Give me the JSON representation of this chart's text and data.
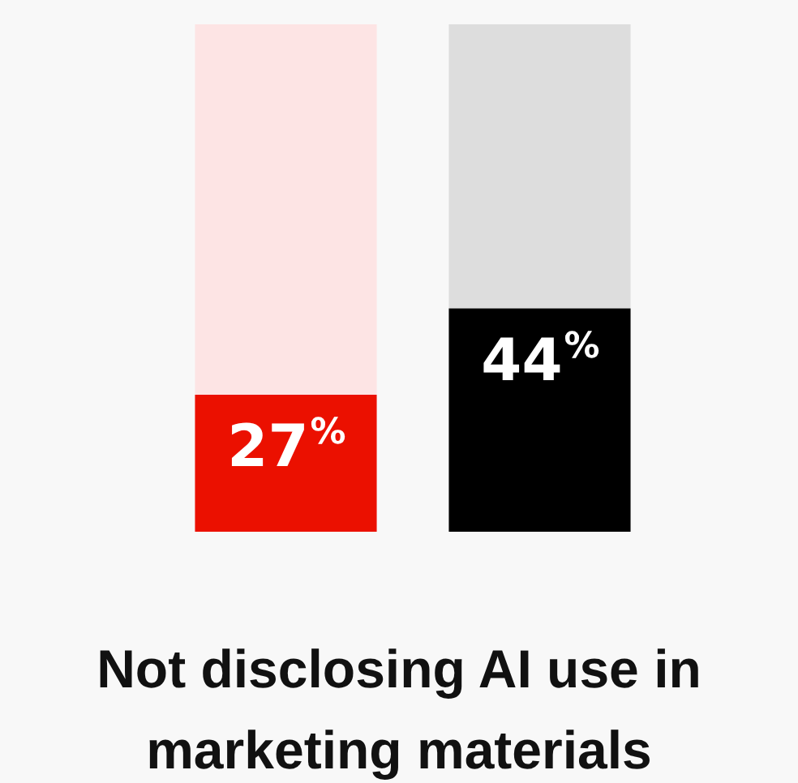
{
  "chart_data": {
    "type": "bar",
    "title": "Not disclosing AI use in marketing materials",
    "categories": [
      null,
      null
    ],
    "stacked": true,
    "ylim": [
      0,
      100
    ],
    "tick_labels": false,
    "grid": false,
    "legend": false,
    "series": [
      {
        "colors": [
          "#eb1000",
          "#000000"
        ],
        "values": [
          27,
          44
        ],
        "value_labels": [
          "27%",
          "44%"
        ]
      },
      {
        "colors": [
          "#fde4e4",
          "#dddddd"
        ],
        "values": [
          73,
          56
        ]
      }
    ]
  }
}
